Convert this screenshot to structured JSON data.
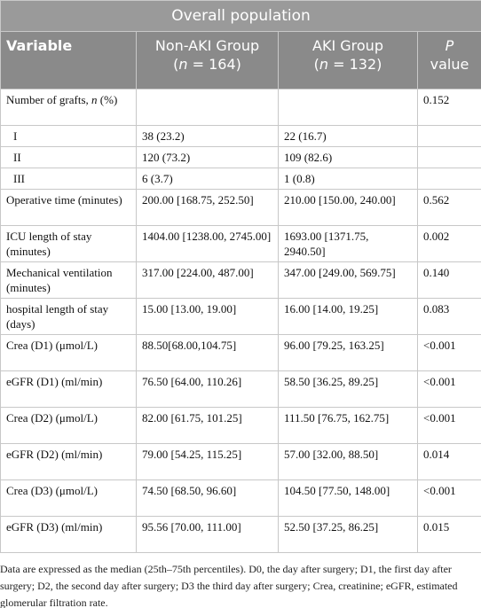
{
  "table": {
    "title": "Overall population",
    "header": [
      [
        {
          "text": "Variable"
        }
      ],
      [
        {
          "text": "Non-AKI Group"
        },
        {
          "text": "("
        },
        {
          "text": "n",
          "italic": true
        },
        {
          "text": " = 164)"
        }
      ],
      [
        {
          "text": "AKI Group"
        },
        {
          "text": "("
        },
        {
          "text": "n",
          "italic": true
        },
        {
          "text": " = 132)"
        }
      ],
      [
        {
          "text": "P",
          "italic": true
        },
        {
          "text": "value"
        }
      ]
    ],
    "rows": [
      [
        [
          {
            "text": "Number of grafts,"
          },
          {
            "text": "n",
            "italic": true
          },
          {
            "text": "(%)"
          }
        ],
        null,
        null,
        "0.152"
      ],
      [
        "I",
        "38 (23.2)",
        "22 (16.7)",
        null
      ],
      [
        "II",
        "120 (73.2)",
        "109 (82.6)",
        null
      ],
      [
        "III",
        "6 (3.7)",
        "1 (0.8)",
        null
      ],
      [
        "Operative time (minutes)",
        "200.00 [168.75, 252.50]",
        "210.00 [150.00, 240.00]",
        "0.562"
      ],
      [
        "ICU length of stay (minutes)",
        "1404.00 [1238.00, 2745.00]",
        "1693.00 [1371.75, 2940.50]",
        "0.002"
      ],
      [
        "Mechanical ventilation (minutes)",
        "317.00 [224.00, 487.00]",
        "347.00 [249.00, 569.75]",
        "0.140"
      ],
      [
        "hospital length of stay (days)",
        "15.00 [13.00, 19.00]",
        "16.00 [14.00, 19.25]",
        "0.083"
      ],
      [
        "Crea (D1) (μmol/L)",
        "88.50[68.00,104.75]",
        "96.00 [79.25, 163.25]",
        "<0.001"
      ],
      [
        "eGFR (D1) (ml/min)",
        "76.50 [64.00, 110.26]",
        "58.50 [36.25, 89.25]",
        "<0.001"
      ],
      [
        "Crea (D2) (μmol/L)",
        "82.00 [61.75, 101.25]",
        "111.50 [76.75, 162.75]",
        "<0.001"
      ],
      [
        "eGFR (D2) (ml/min)",
        "79.00 [54.25, 115.25]",
        "57.00 [32.00, 88.50]",
        "0.014"
      ],
      [
        "Crea (D3) (μmol/L)",
        "74.50 [68.50, 96.60]",
        "104.50 [77.50, 148.00]",
        "<0.001"
      ],
      [
        "eGFR (D3) (ml/min)",
        "95.56 [70.00, 111.00]",
        "52.50 [37.25, 86.25]",
        "0.015"
      ]
    ],
    "footnote": "Data are expressed as the median (25th–75th percentiles). D0, the day after surgery; D1, the first day after surgery; D2, the second day after surgery; D3 the third day after surgery; Crea, creatinine; eGFR, estimated glomerular filtration rate."
  }
}
